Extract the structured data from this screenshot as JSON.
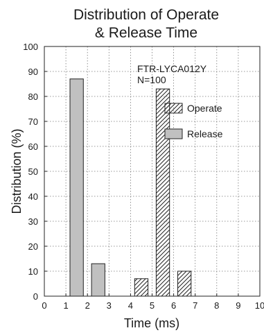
{
  "chart_data": {
    "type": "bar",
    "title_lines": [
      "Distribution of Operate",
      "& Release Time"
    ],
    "xlabel": "Time (ms)",
    "ylabel": "Distribution (%)",
    "xlim": [
      0,
      10
    ],
    "ylim": [
      0,
      100
    ],
    "x_ticks": [
      0,
      1,
      2,
      3,
      4,
      5,
      6,
      7,
      8,
      9,
      10
    ],
    "y_ticks": [
      0,
      10,
      20,
      30,
      40,
      50,
      60,
      70,
      80,
      90,
      100
    ],
    "grid": true,
    "annotation_lines": [
      "FTR-LYCA012Y",
      "N=100"
    ],
    "legend_position": "right",
    "series": [
      {
        "name": "Operate",
        "fill": "hatched",
        "bins": [
          {
            "x_start": 3,
            "x_end": 4,
            "value": 0
          },
          {
            "x_start": 4,
            "x_end": 5,
            "value": 7
          },
          {
            "x_start": 5,
            "x_end": 6,
            "value": 83
          },
          {
            "x_start": 6,
            "x_end": 7,
            "value": 10
          }
        ]
      },
      {
        "name": "Release",
        "fill": "#c0c0c0",
        "bins": [
          {
            "x_start": 1,
            "x_end": 2,
            "value": 87
          },
          {
            "x_start": 2,
            "x_end": 3,
            "value": 13
          }
        ]
      }
    ]
  }
}
